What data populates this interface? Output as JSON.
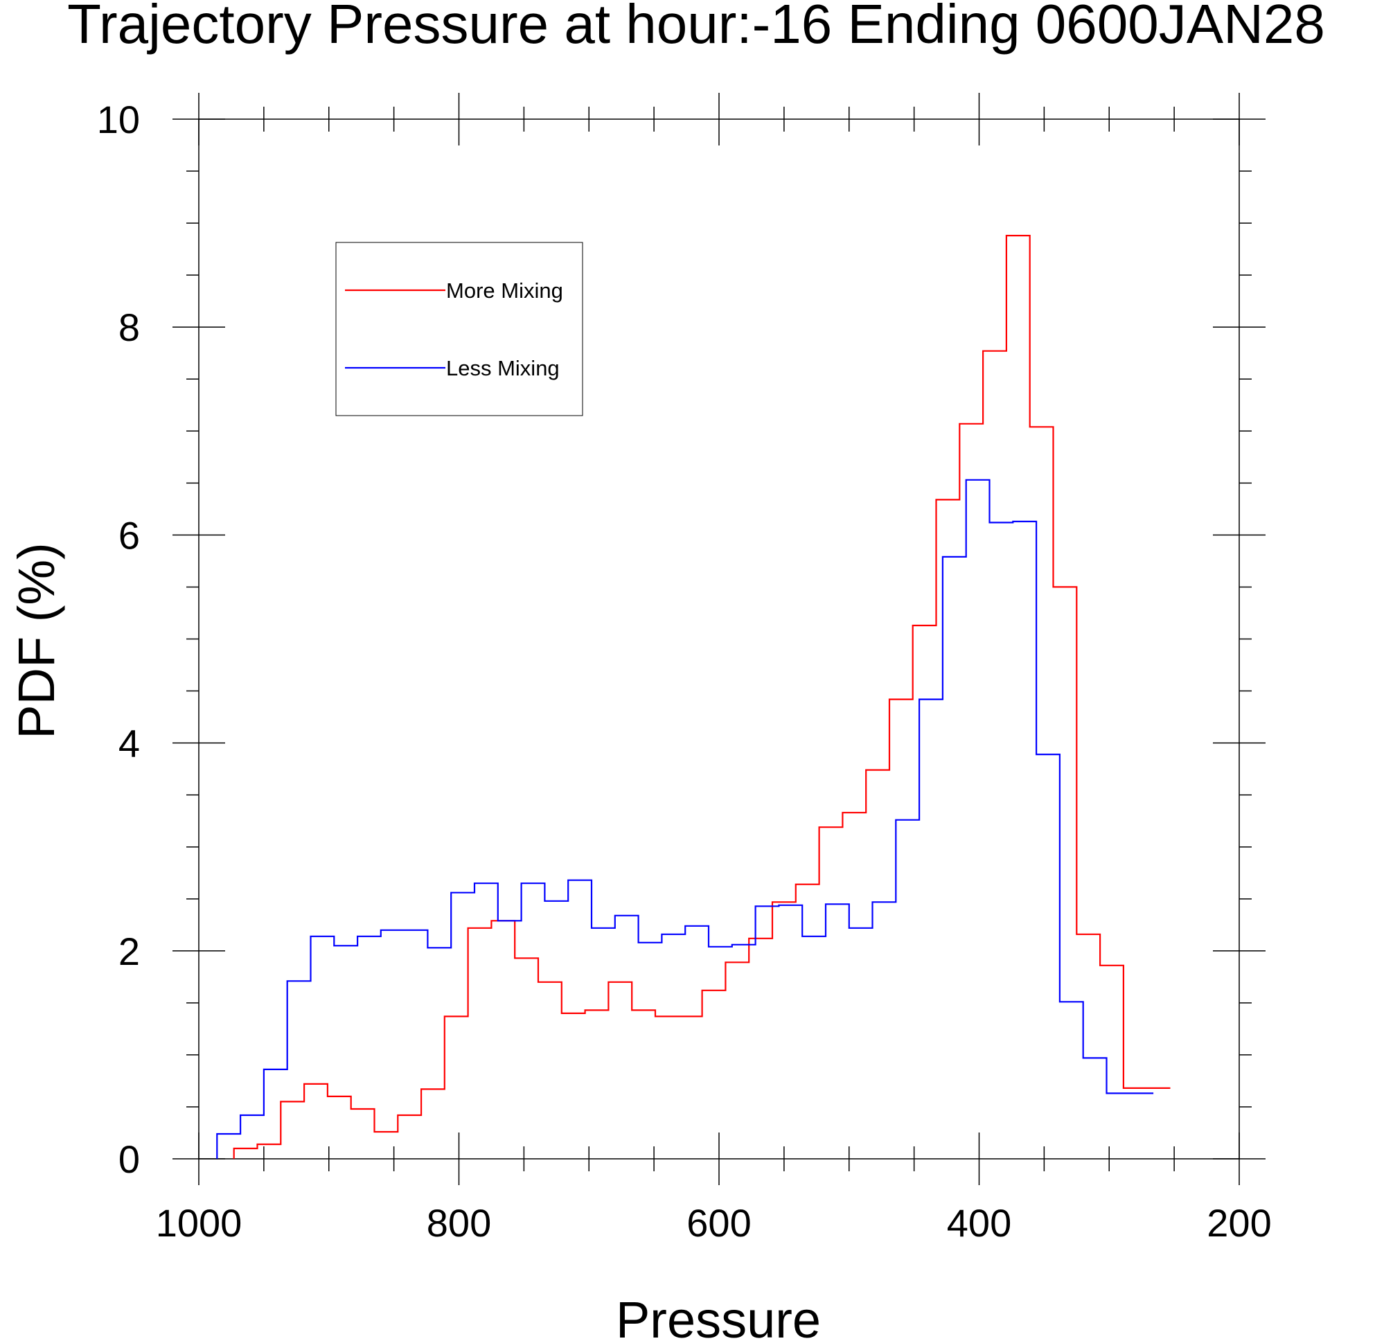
{
  "chart_data": {
    "type": "line",
    "title": "Trajectory Pressure at hour:-16 Ending 0600JAN28",
    "xlabel": "Pressure",
    "ylabel": "PDF (%)",
    "xlim": [
      1000,
      200
    ],
    "ylim": [
      0,
      10
    ],
    "x_reversed": true,
    "x_ticks": [
      "1000",
      "800",
      "600",
      "400",
      "200"
    ],
    "y_ticks": [
      "0",
      "2",
      "4",
      "6",
      "8",
      "10"
    ],
    "grid": false,
    "legend_position": "top-left",
    "step": true,
    "series": [
      {
        "name": "More Mixing",
        "color": "#ff0000",
        "x": [
          964,
          946,
          928,
          910,
          892,
          874,
          856,
          838,
          820,
          802,
          784,
          766,
          748,
          730,
          712,
          694,
          676,
          658,
          640,
          622,
          604,
          586,
          568,
          550,
          532,
          514,
          496,
          478,
          460,
          442,
          424,
          406,
          388,
          370,
          352,
          334,
          316,
          298,
          280,
          262
        ],
        "values": [
          0.1,
          0.14,
          0.55,
          0.72,
          0.6,
          0.48,
          0.26,
          0.42,
          0.67,
          1.37,
          2.22,
          2.29,
          1.93,
          1.7,
          1.4,
          1.43,
          1.7,
          1.43,
          1.37,
          1.37,
          1.62,
          1.89,
          2.12,
          2.47,
          2.64,
          3.19,
          3.33,
          3.74,
          4.42,
          5.13,
          6.34,
          7.07,
          7.77,
          8.88,
          7.04,
          5.5,
          2.16,
          1.86,
          0.68,
          0.68
        ]
      },
      {
        "name": "Less Mixing",
        "color": "#0000ff",
        "x": [
          977,
          959,
          941,
          923,
          905,
          887,
          869,
          851,
          833,
          815,
          797,
          779,
          761,
          743,
          725,
          707,
          689,
          671,
          653,
          635,
          617,
          599,
          581,
          563,
          545,
          527,
          509,
          491,
          473,
          455,
          437,
          419,
          401,
          383,
          365,
          347,
          329,
          311,
          293,
          275
        ],
        "values": [
          0.24,
          0.42,
          0.86,
          1.71,
          2.14,
          2.05,
          2.14,
          2.2,
          2.2,
          2.03,
          2.56,
          2.65,
          2.29,
          2.65,
          2.48,
          2.68,
          2.22,
          2.34,
          2.08,
          2.16,
          2.24,
          2.04,
          2.06,
          2.43,
          2.44,
          2.14,
          2.45,
          2.22,
          2.47,
          3.26,
          4.42,
          5.79,
          6.53,
          6.12,
          6.13,
          3.89,
          1.51,
          0.97,
          0.63,
          0.63
        ]
      }
    ]
  }
}
